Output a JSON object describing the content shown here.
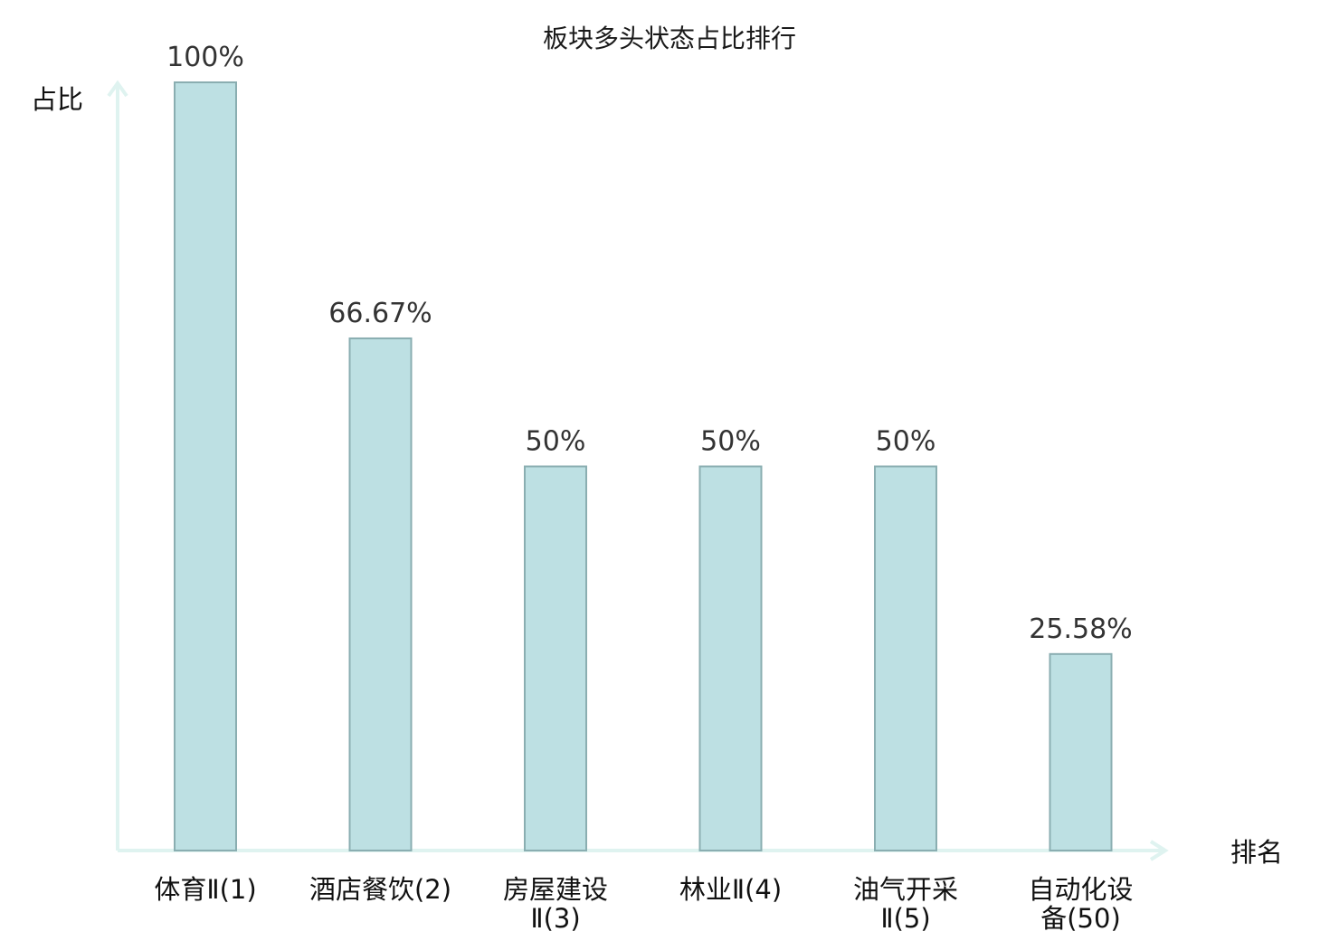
{
  "chart_data": {
    "type": "bar",
    "title": "板块多头状态占比排行",
    "xlabel": "排名",
    "ylabel": "占比",
    "ylim": [
      0,
      100
    ],
    "grid": false,
    "categories": [
      {
        "lines": [
          "体育Ⅱ(1)"
        ],
        "highlight": false
      },
      {
        "lines": [
          "酒店餐饮(2)"
        ],
        "highlight": false
      },
      {
        "lines": [
          "房屋建设",
          "Ⅱ(3)"
        ],
        "highlight": false
      },
      {
        "lines": [
          "林业Ⅱ(4)"
        ],
        "highlight": false
      },
      {
        "lines": [
          "油气开采",
          "Ⅱ(5)"
        ],
        "highlight": false
      },
      {
        "lines": [
          "自动化设",
          "备(50)"
        ],
        "highlight": true
      }
    ],
    "values": [
      100,
      66.67,
      50,
      50,
      50,
      25.58
    ],
    "value_labels": [
      "100%",
      "66.67%",
      "50%",
      "50%",
      "50%",
      "25.58%"
    ],
    "colors": {
      "bar_fill": "#bde0e3",
      "bar_stroke": "#8aaeb1",
      "axis": "#dff3f0",
      "highlight_text": "#e8141a",
      "text": "#111111"
    }
  }
}
